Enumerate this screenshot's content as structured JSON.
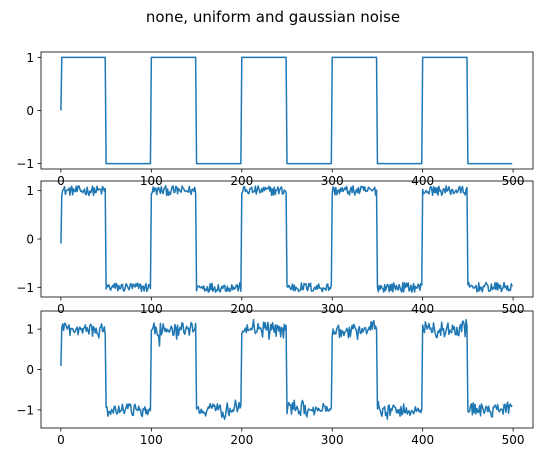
{
  "figure": {
    "title": "none, uniform and gaussian noise"
  },
  "chart_data": [
    {
      "type": "line",
      "title": "",
      "xlabel": "",
      "ylabel": "",
      "xlim": [
        -22,
        522
      ],
      "ylim": [
        -1.1,
        1.1
      ],
      "xticks": [
        0,
        100,
        200,
        300,
        400,
        500
      ],
      "yticks": [
        -1,
        0,
        1
      ],
      "grid": false,
      "noise": "none",
      "color": "#1f77b4",
      "series": [
        {
          "period": 100,
          "amplitude": 1,
          "n": 500,
          "x_start": 0,
          "x_end": 499
        }
      ]
    },
    {
      "type": "line",
      "title": "",
      "xlabel": "",
      "ylabel": "",
      "xlim": [
        -22,
        522
      ],
      "ylim": [
        -1.2,
        1.2
      ],
      "xticks": [
        0,
        100,
        200,
        300,
        400,
        500
      ],
      "yticks": [
        -1,
        0,
        1
      ],
      "grid": false,
      "noise": "uniform",
      "noise_range": [
        -0.1,
        0.1
      ],
      "color": "#1f77b4",
      "series": [
        {
          "period": 100,
          "amplitude": 1,
          "n": 500,
          "x_start": 0,
          "x_end": 499
        }
      ]
    },
    {
      "type": "line",
      "title": "",
      "xlabel": "",
      "ylabel": "",
      "xlim": [
        -22,
        522
      ],
      "ylim": [
        -1.45,
        1.45
      ],
      "xticks": [
        0,
        100,
        200,
        300,
        400,
        500
      ],
      "yticks": [
        -1,
        0,
        1
      ],
      "grid": false,
      "noise": "gaussian",
      "noise_sigma": 0.1,
      "color": "#1f77b4",
      "series": [
        {
          "period": 100,
          "amplitude": 1,
          "n": 500,
          "x_start": 0,
          "x_end": 499
        }
      ]
    }
  ]
}
